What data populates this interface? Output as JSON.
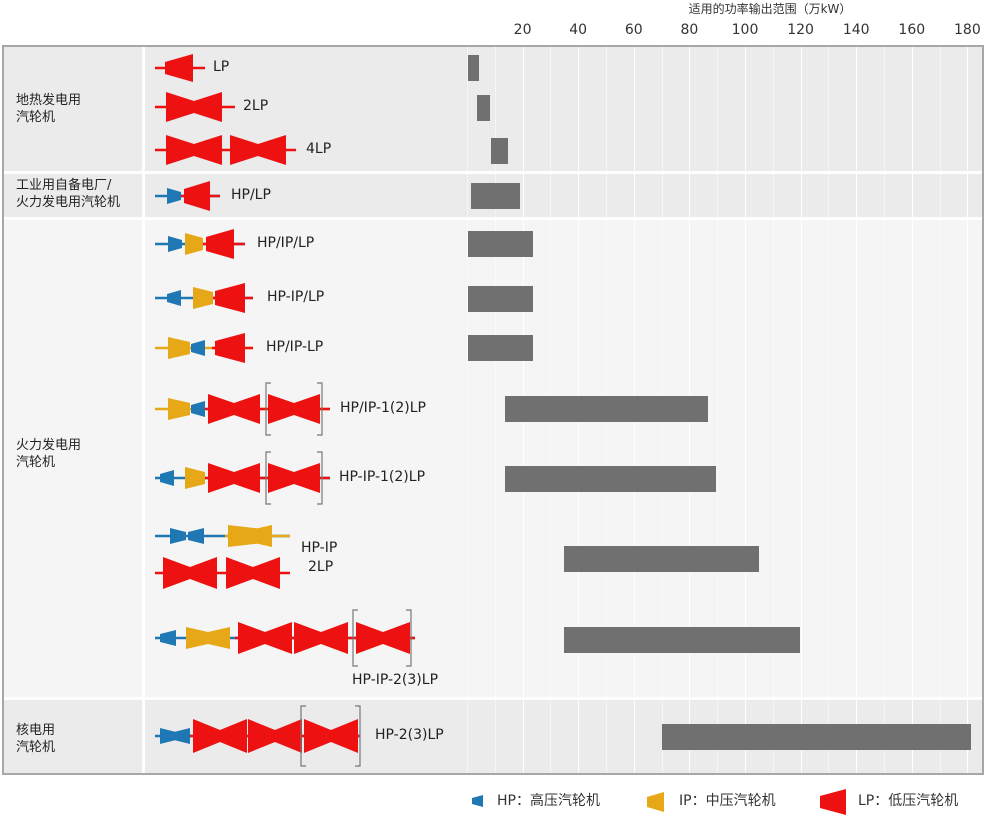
{
  "chart_data": {
    "type": "bar",
    "orientation": "horizontal",
    "axis_title": "适用的功率输出范围（万kW）",
    "x_ticks": [
      20,
      40,
      60,
      80,
      100,
      120,
      140,
      160,
      180
    ],
    "xlim": [
      0,
      180
    ],
    "grid": true,
    "groups": [
      {
        "label_line1": "地热发电用",
        "label_line2": "汽轮机"
      },
      {
        "label_line1": "工业用自备电厂/",
        "label_line2": "火力发电用汽轮机"
      },
      {
        "label_line1": "火力发电用",
        "label_line2": "汽轮机"
      },
      {
        "label_line1": "核电用",
        "label_line2": "汽轮机"
      }
    ],
    "rows": [
      {
        "label": "LP",
        "group": 0,
        "range": [
          0.5,
          4.5
        ]
      },
      {
        "label": "2LP",
        "group": 0,
        "range": [
          3.5,
          8
        ]
      },
      {
        "label": "4LP",
        "group": 0,
        "range": [
          8.5,
          14.5
        ]
      },
      {
        "label": "HP/LP",
        "group": 1,
        "range": [
          1.5,
          19
        ]
      },
      {
        "label": "HP/IP/LP",
        "group": 2,
        "range": [
          0.5,
          24
        ]
      },
      {
        "label": "HP-IP/LP",
        "group": 2,
        "range": [
          0.5,
          24
        ]
      },
      {
        "label": "HP/IP-LP",
        "group": 2,
        "range": [
          0.5,
          24
        ]
      },
      {
        "label": "HP/IP-1(2)LP",
        "group": 2,
        "range": [
          13.5,
          86.5
        ]
      },
      {
        "label": "HP-IP-1(2)LP",
        "group": 2,
        "range": [
          13.5,
          89.5
        ]
      },
      {
        "label": "HP-IP\n2LP",
        "label_line1": "HP-IP",
        "label_line2": "2LP",
        "group": 2,
        "range": [
          35,
          105
        ]
      },
      {
        "label": "HP-IP-2(3)LP",
        "group": 2,
        "range": [
          35,
          120
        ]
      },
      {
        "label": "HP-2(3)LP",
        "group": 3,
        "range": [
          70,
          181
        ]
      }
    ]
  },
  "legend": {
    "hp": "HP：高压汽轮机",
    "ip": "IP：中压汽轮机",
    "lp": "LP：低压汽轮机"
  },
  "colors": {
    "hp": "#1f77b4",
    "ip": "#e6a817",
    "lp": "#ee1111",
    "bar": "#707070",
    "band": "#ebebeb",
    "frame": "#f5f5f5"
  }
}
